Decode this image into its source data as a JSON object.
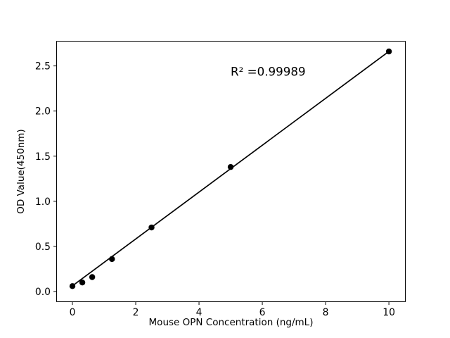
{
  "chart_data": {
    "type": "scatter",
    "title": "",
    "xlabel": "Mouse OPN Concentration (ng/mL)",
    "ylabel": "OD Value(450nm)",
    "annotation": {
      "text": "R² =0.99989",
      "x": 5.0,
      "y": 2.44
    },
    "points": {
      "x": [
        0,
        0.313,
        0.625,
        1.25,
        2.5,
        5,
        10
      ],
      "y": [
        0.06,
        0.1,
        0.16,
        0.36,
        0.71,
        1.38,
        2.66
      ]
    },
    "fit_line": {
      "x1": 0,
      "y1": 0.063,
      "x2": 10,
      "y2": 2.66
    },
    "xticks": {
      "values": [
        0,
        2,
        4,
        6,
        8,
        10
      ],
      "labels": [
        "0",
        "2",
        "4",
        "6",
        "8",
        "10"
      ]
    },
    "yticks": {
      "values": [
        0.0,
        0.5,
        1.0,
        1.5,
        2.0,
        2.5
      ],
      "labels": [
        "0.0",
        "0.5",
        "1.0",
        "1.5",
        "2.0",
        "2.5"
      ]
    },
    "xlim": [
      -0.5,
      10.52
    ],
    "ylim": [
      -0.113,
      2.774
    ],
    "grid": false,
    "legend_position": "none",
    "colors": {
      "marker": "#000000",
      "line": "#000000",
      "spine": "#000000",
      "text": "#000000",
      "background": "#ffffff"
    }
  }
}
